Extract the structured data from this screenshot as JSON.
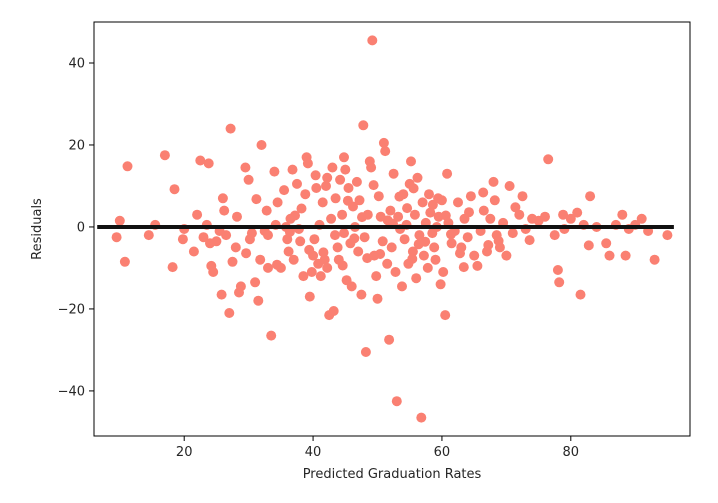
{
  "chart_data": {
    "type": "scatter",
    "title": "",
    "xlabel": "Predicted Graduation Rates",
    "ylabel": "Residuals",
    "xlim": [
      6,
      98.5
    ],
    "ylim": [
      -51,
      50
    ],
    "xticks": [
      20,
      40,
      60,
      80
    ],
    "yticks": [
      -40,
      -20,
      0,
      20,
      40
    ],
    "xtick_labels": [
      "20",
      "40",
      "60",
      "80"
    ],
    "ytick_labels": [
      "−40",
      "−20",
      "0",
      "20",
      "40"
    ],
    "grid": false,
    "point_color": "#fa8072",
    "reference_line": {
      "y": 0,
      "x_from": 6.5,
      "x_to": 96,
      "color": "#111111"
    },
    "series": [
      {
        "name": "residuals",
        "points": [
          [
            9.5,
            -2.5
          ],
          [
            10,
            1.5
          ],
          [
            10.8,
            -8.5
          ],
          [
            11.2,
            14.8
          ],
          [
            14.5,
            -2
          ],
          [
            15.5,
            0.5
          ],
          [
            17,
            17.5
          ],
          [
            18.2,
            -9.8
          ],
          [
            18.5,
            9.2
          ],
          [
            19.8,
            -3
          ],
          [
            20,
            -0.5
          ],
          [
            21.5,
            -6
          ],
          [
            22,
            3
          ],
          [
            22.5,
            16.2
          ],
          [
            23,
            -2.5
          ],
          [
            23.5,
            0.5
          ],
          [
            23.8,
            15.5
          ],
          [
            24,
            -4
          ],
          [
            24.2,
            -9.5
          ],
          [
            24.5,
            -11
          ],
          [
            25,
            -3.5
          ],
          [
            25.5,
            -1
          ],
          [
            25.8,
            -16.5
          ],
          [
            26,
            7
          ],
          [
            26.2,
            4
          ],
          [
            26.5,
            -2
          ],
          [
            27,
            -21
          ],
          [
            27.2,
            24
          ],
          [
            27.5,
            -8.5
          ],
          [
            28,
            -5
          ],
          [
            28.2,
            2.5
          ],
          [
            28.5,
            -16
          ],
          [
            28.8,
            -14.5
          ],
          [
            29.5,
            14.5
          ],
          [
            30,
            11.5
          ],
          [
            30.2,
            -3
          ],
          [
            30.5,
            -1.5
          ],
          [
            31,
            -13.5
          ],
          [
            31.5,
            -18
          ],
          [
            31.8,
            -8
          ],
          [
            32,
            20
          ],
          [
            32.5,
            -1
          ],
          [
            32.8,
            4
          ],
          [
            33,
            -10
          ],
          [
            33.5,
            -26.5
          ],
          [
            34,
            13.5
          ],
          [
            34.2,
            0.5
          ],
          [
            34.5,
            6
          ],
          [
            35,
            -10
          ],
          [
            35.5,
            9
          ],
          [
            35.8,
            0
          ],
          [
            36,
            -3
          ],
          [
            36.2,
            -6
          ],
          [
            36.5,
            2
          ],
          [
            36.8,
            14
          ],
          [
            37,
            -8
          ],
          [
            37.5,
            10.5
          ],
          [
            37.8,
            -0.5
          ],
          [
            38,
            -3.5
          ],
          [
            38.5,
            -12
          ],
          [
            38.8,
            8
          ],
          [
            39,
            17
          ],
          [
            39.2,
            15.5
          ],
          [
            39.5,
            -17
          ],
          [
            39.8,
            -11
          ],
          [
            40,
            -7
          ],
          [
            40.2,
            -3
          ],
          [
            40.5,
            9.5
          ],
          [
            40.8,
            -9
          ],
          [
            41,
            0.5
          ],
          [
            41.2,
            -12
          ],
          [
            41.5,
            6
          ],
          [
            41.8,
            -8
          ],
          [
            42,
            10
          ],
          [
            42.2,
            -10
          ],
          [
            42.5,
            -21.5
          ],
          [
            42.8,
            2
          ],
          [
            43,
            14.5
          ],
          [
            43.2,
            -20.5
          ],
          [
            43.5,
            7
          ],
          [
            43.8,
            -5
          ],
          [
            44,
            -8
          ],
          [
            44.2,
            11.5
          ],
          [
            44.5,
            3
          ],
          [
            44.8,
            -1.5
          ],
          [
            45,
            14
          ],
          [
            45.2,
            -13
          ],
          [
            45.5,
            9.5
          ],
          [
            45.8,
            -4
          ],
          [
            46,
            -14.5
          ],
          [
            46.2,
            5
          ],
          [
            46.5,
            0
          ],
          [
            46.8,
            11
          ],
          [
            47,
            -6
          ],
          [
            47.2,
            6.5
          ],
          [
            47.5,
            -16.5
          ],
          [
            47.8,
            24.8
          ],
          [
            48,
            -2.5
          ],
          [
            48.2,
            -30.5
          ],
          [
            48.5,
            3
          ],
          [
            48.8,
            16
          ],
          [
            49,
            14.5
          ],
          [
            49.2,
            45.5
          ],
          [
            49.5,
            -7
          ],
          [
            49.8,
            -12
          ],
          [
            50,
            -17.5
          ],
          [
            50.2,
            7.5
          ],
          [
            50.5,
            2.5
          ],
          [
            50.8,
            -3.5
          ],
          [
            51,
            20.5
          ],
          [
            51.2,
            18.5
          ],
          [
            51.5,
            -9
          ],
          [
            51.8,
            -27.5
          ],
          [
            52,
            4
          ],
          [
            52.2,
            -5
          ],
          [
            52.5,
            13
          ],
          [
            52.8,
            -11
          ],
          [
            53,
            -42.5
          ],
          [
            53.2,
            2.5
          ],
          [
            53.5,
            -0.5
          ],
          [
            53.8,
            -14.5
          ],
          [
            54,
            8
          ],
          [
            54.2,
            -3
          ],
          [
            54.5,
            0.5
          ],
          [
            54.8,
            -9
          ],
          [
            55,
            10.5
          ],
          [
            55.2,
            16
          ],
          [
            55.5,
            -6
          ],
          [
            55.8,
            3
          ],
          [
            56,
            -12.5
          ],
          [
            56.2,
            12
          ],
          [
            56.5,
            -2
          ],
          [
            56.8,
            -46.5
          ],
          [
            57,
            6
          ],
          [
            57.2,
            -7
          ],
          [
            57.5,
            1
          ],
          [
            57.8,
            -10
          ],
          [
            58,
            8
          ],
          [
            58.2,
            3.5
          ],
          [
            58.5,
            -1.5
          ],
          [
            58.8,
            -5
          ],
          [
            59,
            -8
          ],
          [
            59.2,
            0
          ],
          [
            59.5,
            2.5
          ],
          [
            59.8,
            -14
          ],
          [
            60,
            6.5
          ],
          [
            60.2,
            -11
          ],
          [
            60.5,
            -21.5
          ],
          [
            60.8,
            13
          ],
          [
            61,
            1
          ],
          [
            61.5,
            -4
          ],
          [
            62,
            -1
          ],
          [
            62.5,
            6
          ],
          [
            63,
            -5
          ],
          [
            63.5,
            2
          ],
          [
            64,
            -2.5
          ],
          [
            64.5,
            7.5
          ],
          [
            65,
            -7
          ],
          [
            65.5,
            -9.5
          ],
          [
            66,
            -1
          ],
          [
            66.5,
            4
          ],
          [
            67,
            -6
          ],
          [
            67.5,
            2
          ],
          [
            68,
            11
          ],
          [
            68.2,
            6.5
          ],
          [
            68.5,
            -2
          ],
          [
            69,
            -5
          ],
          [
            69.5,
            1
          ],
          [
            70,
            -7
          ],
          [
            70.5,
            10
          ],
          [
            71,
            -1.5
          ],
          [
            72,
            3
          ],
          [
            72.5,
            7.5
          ],
          [
            73,
            -0.5
          ],
          [
            74,
            2
          ],
          [
            75,
            1.5
          ],
          [
            76,
            2.5
          ],
          [
            76.5,
            16.5
          ],
          [
            77.5,
            -2
          ],
          [
            78,
            -10.5
          ],
          [
            78.2,
            -13.5
          ],
          [
            78.8,
            3
          ],
          [
            79,
            -0.5
          ],
          [
            80,
            2
          ],
          [
            81,
            3.5
          ],
          [
            81.5,
            -16.5
          ],
          [
            82,
            0.5
          ],
          [
            82.8,
            -4.5
          ],
          [
            83,
            7.5
          ],
          [
            84,
            0
          ],
          [
            85.5,
            -4
          ],
          [
            86,
            -7
          ],
          [
            87,
            0.5
          ],
          [
            88,
            3
          ],
          [
            88.5,
            -7
          ],
          [
            89,
            -0.5
          ],
          [
            90,
            0.5
          ],
          [
            91,
            2
          ],
          [
            92,
            -1
          ],
          [
            93,
            -8
          ],
          [
            95,
            -2
          ],
          [
            33,
            -2
          ],
          [
            38.2,
            4.5
          ],
          [
            41.6,
            -6.2
          ],
          [
            44.6,
            -9.4
          ],
          [
            46.4,
            -2.8
          ],
          [
            47.6,
            2.4
          ],
          [
            50.4,
            -6.6
          ],
          [
            52.4,
            0.8
          ],
          [
            54.6,
            4.6
          ],
          [
            56.4,
            -4.2
          ],
          [
            58.6,
            5.4
          ],
          [
            60.6,
            2.8
          ],
          [
            62.8,
            -6.4
          ],
          [
            64.2,
            3.6
          ],
          [
            66.4,
            8.4
          ],
          [
            68.8,
            -3.4
          ],
          [
            71.4,
            4.8
          ],
          [
            73.6,
            -3.2
          ],
          [
            43.4,
            -2
          ],
          [
            39.4,
            -5.6
          ],
          [
            37.2,
            2.8
          ],
          [
            42.2,
            12
          ],
          [
            45.4,
            6.4
          ],
          [
            49.4,
            10.2
          ],
          [
            53.4,
            7.4
          ],
          [
            55.4,
            -7.8
          ],
          [
            57.4,
            -3.6
          ],
          [
            59.4,
            7
          ],
          [
            61.4,
            -1.8
          ],
          [
            36.4,
            -1.2
          ],
          [
            34.4,
            -9.2
          ],
          [
            31.2,
            6.8
          ],
          [
            29.6,
            -6.4
          ],
          [
            40.4,
            12.6
          ],
          [
            44.8,
            17
          ],
          [
            48.4,
            -7.6
          ],
          [
            51.6,
            1.6
          ],
          [
            55.6,
            9.4
          ],
          [
            63.4,
            -9.8
          ],
          [
            67.2,
            -4.4
          ]
        ]
      }
    ]
  }
}
